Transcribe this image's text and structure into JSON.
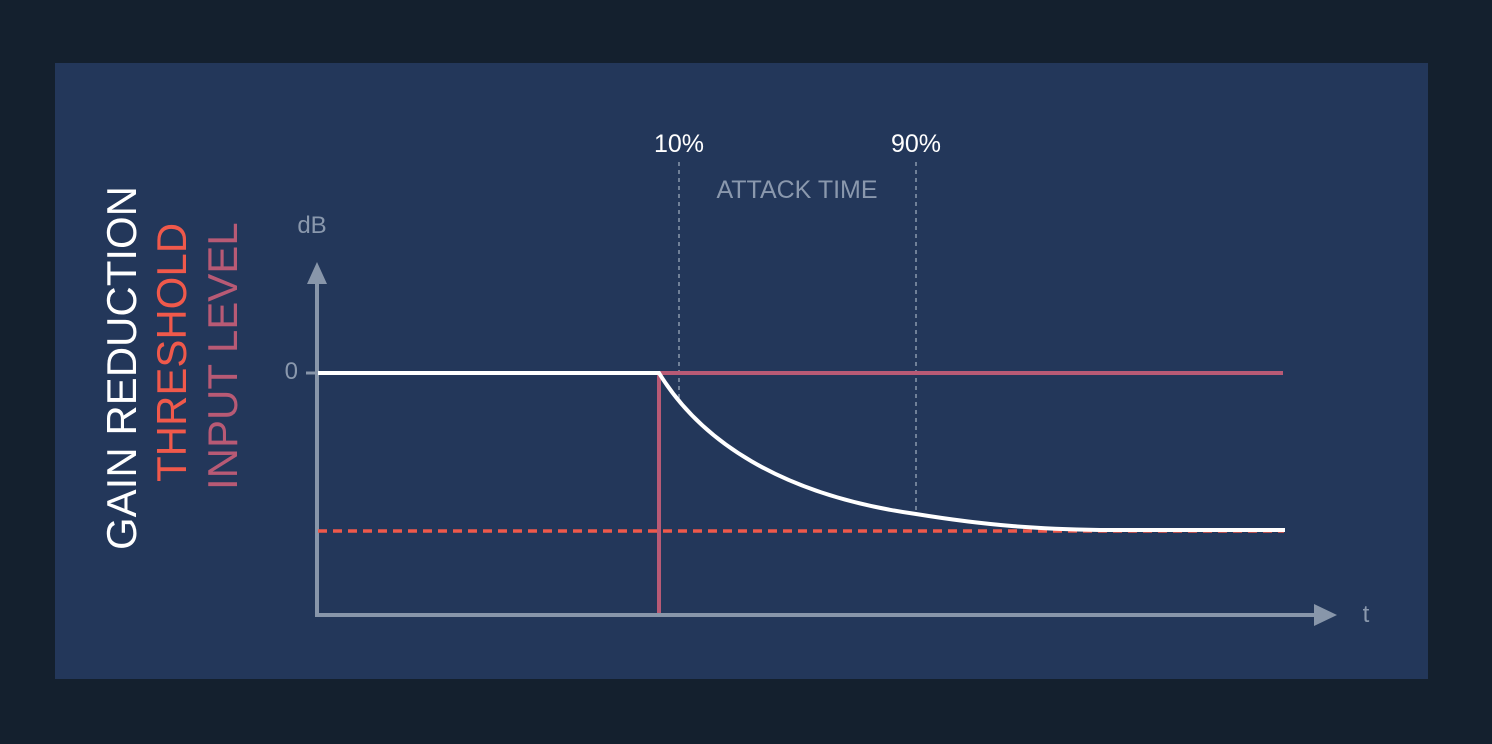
{
  "legend": {
    "gain_reduction": "GAIN REDUCTION",
    "threshold": "THRESHOLD",
    "input_level": "INPUT LEVEL"
  },
  "axes": {
    "y_label": "dB",
    "x_label": "t",
    "zero_tick": "0"
  },
  "markers": {
    "start_pct": "10%",
    "end_pct": "90%",
    "region_label": "ATTACK TIME"
  },
  "colors": {
    "background": "#14202e",
    "panel": "#23375a",
    "gain_reduction": "#ffffff",
    "threshold": "#f0594b",
    "input_level": "#b85a75",
    "axis": "#8896aa",
    "guide": "#8a98ad"
  }
}
